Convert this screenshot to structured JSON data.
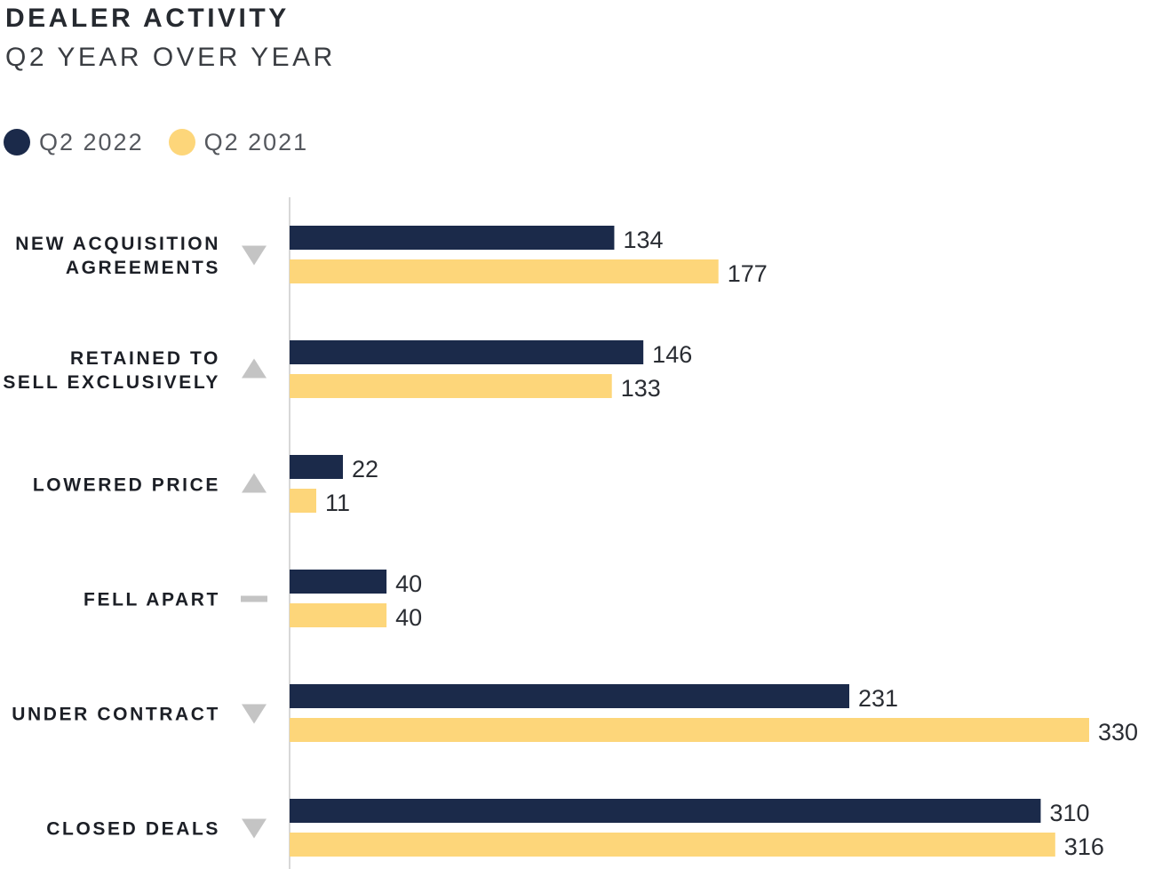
{
  "chart_data": {
    "type": "bar",
    "orientation": "horizontal",
    "title": "DEALER ACTIVITY",
    "subtitle": "Q2 YEAR OVER YEAR",
    "categories": [
      [
        "NEW ACQUISITION",
        "AGREEMENTS"
      ],
      [
        "RETAINED TO",
        "SELL EXCLUSIVELY"
      ],
      [
        "LOWERED PRICE"
      ],
      [
        "FELL APART"
      ],
      [
        "UNDER CONTRACT"
      ],
      [
        "CLOSED DEALS"
      ]
    ],
    "trends": [
      "down",
      "up",
      "up",
      "flat",
      "down",
      "down"
    ],
    "series": [
      {
        "name": "Q2 2022",
        "color": "#1b2a4a",
        "values": [
          134,
          146,
          22,
          40,
          231,
          310
        ]
      },
      {
        "name": "Q2 2021",
        "color": "#fdd67a",
        "values": [
          177,
          133,
          11,
          40,
          330,
          316
        ]
      }
    ],
    "xlim": [
      0,
      330
    ],
    "legend_position": "top-left",
    "grid": false,
    "axis_color": "#d8d8d8",
    "trend_color": "#c4c4c4"
  }
}
